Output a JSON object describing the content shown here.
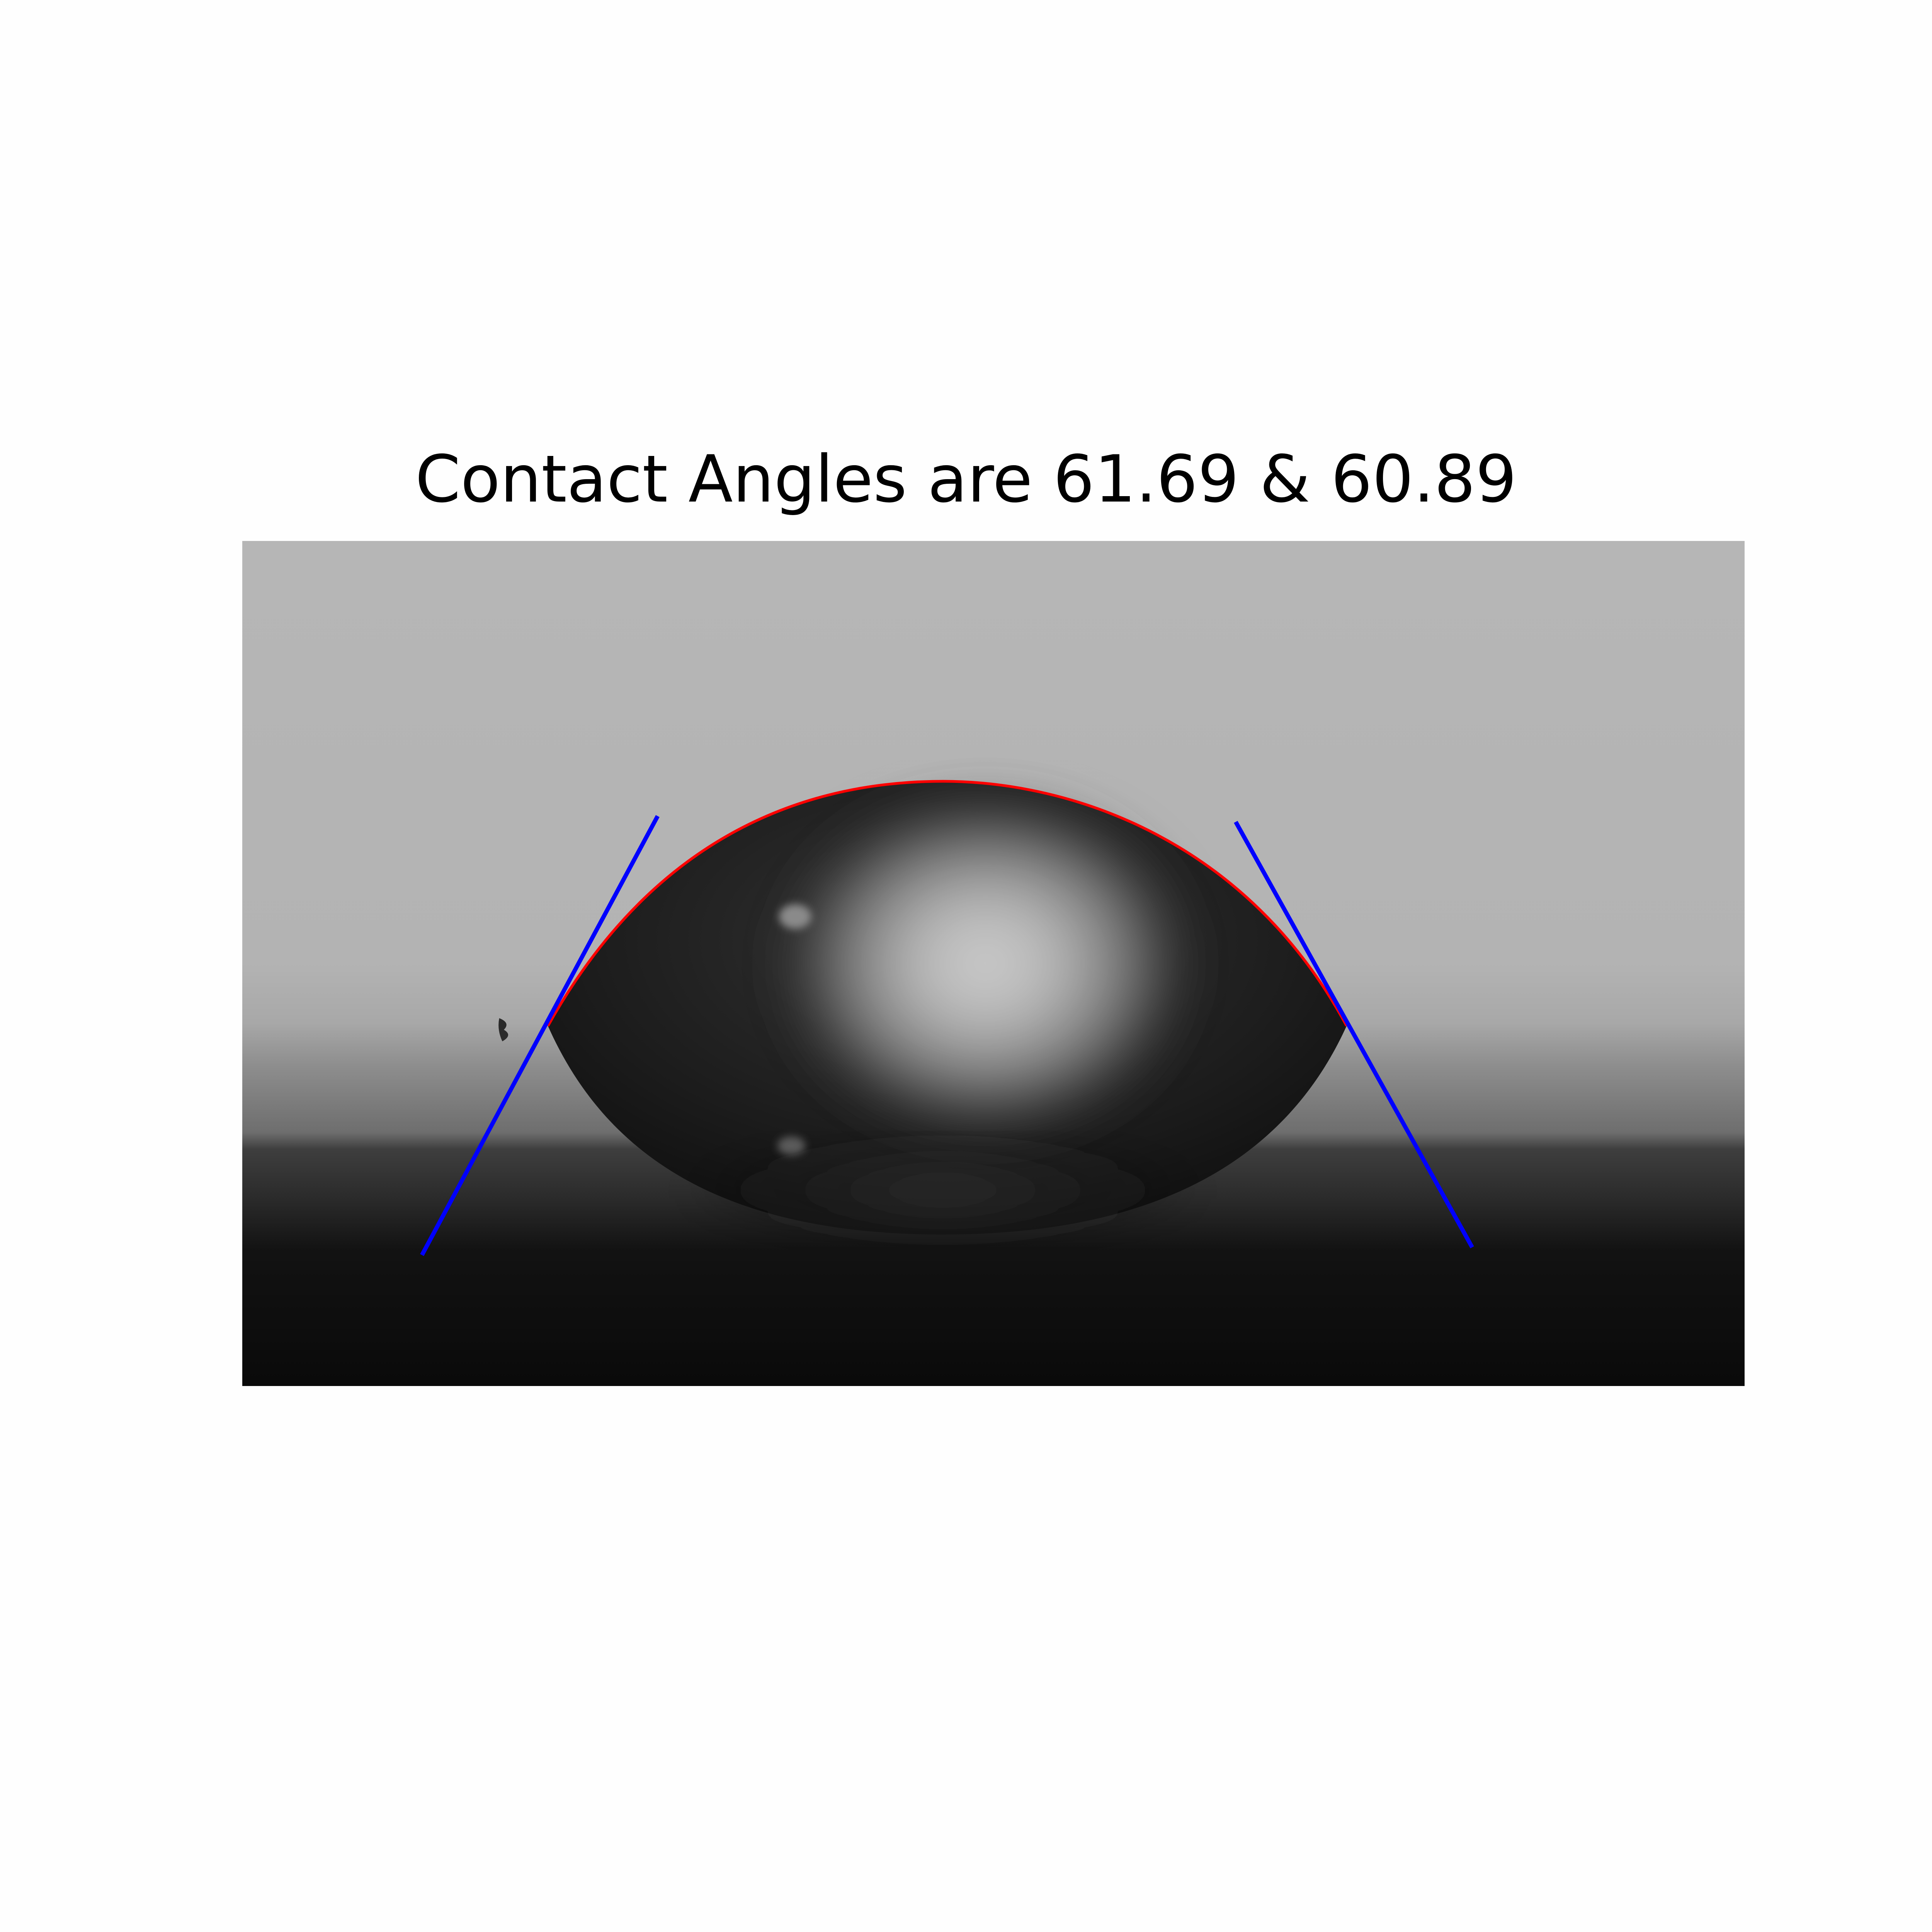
{
  "figure": {
    "title": "Contact Angles are 61.69 & 60.89"
  },
  "measurement": {
    "contact_angles_deg": [
      61.69,
      60.89
    ]
  },
  "colors": {
    "background": "#fefefe",
    "fitted_profile": "#ff0000",
    "tangent_lines": "#0000ff",
    "backdrop_top": "#b6b6b6",
    "substrate": "#0a0a0a",
    "droplet_body": "#1a1a1a",
    "droplet_highlight": "#c8c8c8"
  }
}
